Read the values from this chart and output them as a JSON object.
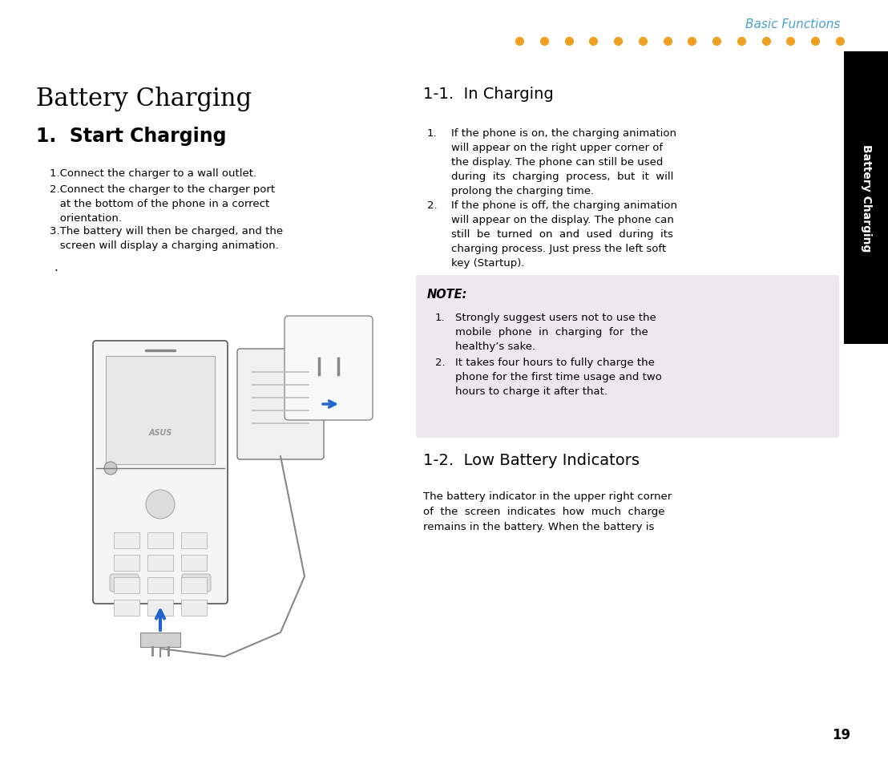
{
  "background_color": "#ffffff",
  "sidebar_color": "#000000",
  "sidebar_text": "Battery Charging",
  "header_dots_color": "#f0a020",
  "header_text": "Basic Functions",
  "header_text_color": "#4a9fd4",
  "page_number": "19",
  "main_title": "Battery Charging",
  "section1_title": "1.  Start Charging",
  "right_section1_title": "1-1.  In Charging",
  "note_bg_color": "#ede8f0",
  "note_title": "NOTE:",
  "note_items": [
    "Strongly suggest users not to use the\nmobile  phone  in  charging  for  the\nhealthy’s sake.",
    "It takes four hours to fully charge the\nphone for the first time usage and two\nhours to charge it after that."
  ],
  "right_section2_title": "1-2.  Low Battery Indicators",
  "right_section2_text": "The battery indicator in the upper right corner\nof  the  screen  indicates  how  much  charge\nremains in the battery. When the battery is"
}
